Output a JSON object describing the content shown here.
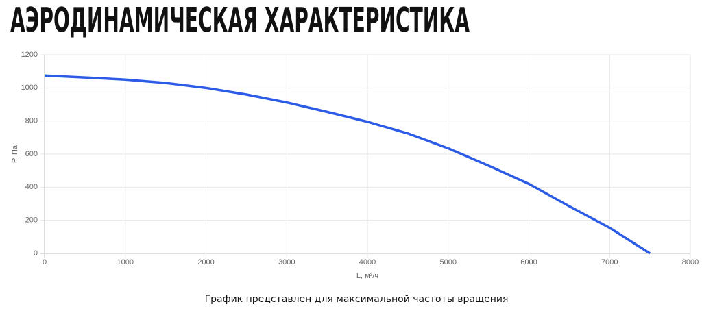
{
  "chart_data": {
    "type": "line",
    "title": "АЭРОДИНАМИЧЕСКАЯ ХАРАКТЕРИСТИКА",
    "x_label": "L, м³/ч",
    "y_label": "P, Па",
    "note": "График представлен для максимальной частоты вращения",
    "x": [
      0,
      500,
      1000,
      1500,
      2000,
      2500,
      3000,
      3500,
      4000,
      4500,
      5000,
      5500,
      6000,
      6500,
      7000,
      7500
    ],
    "series": [
      {
        "color": "#2c5be6",
        "values": [
          1075,
          1063,
          1050,
          1030,
          1000,
          960,
          912,
          855,
          795,
          725,
          635,
          530,
          420,
          285,
          155,
          0
        ]
      }
    ],
    "xlim": [
      0,
      8000
    ],
    "xticks": [
      0,
      1000,
      2000,
      3000,
      4000,
      5000,
      6000,
      7000,
      8000
    ],
    "ylim": [
      0,
      1200
    ],
    "yticks": [
      0,
      200,
      400,
      600,
      800,
      1000,
      1200
    ],
    "grid": true
  }
}
